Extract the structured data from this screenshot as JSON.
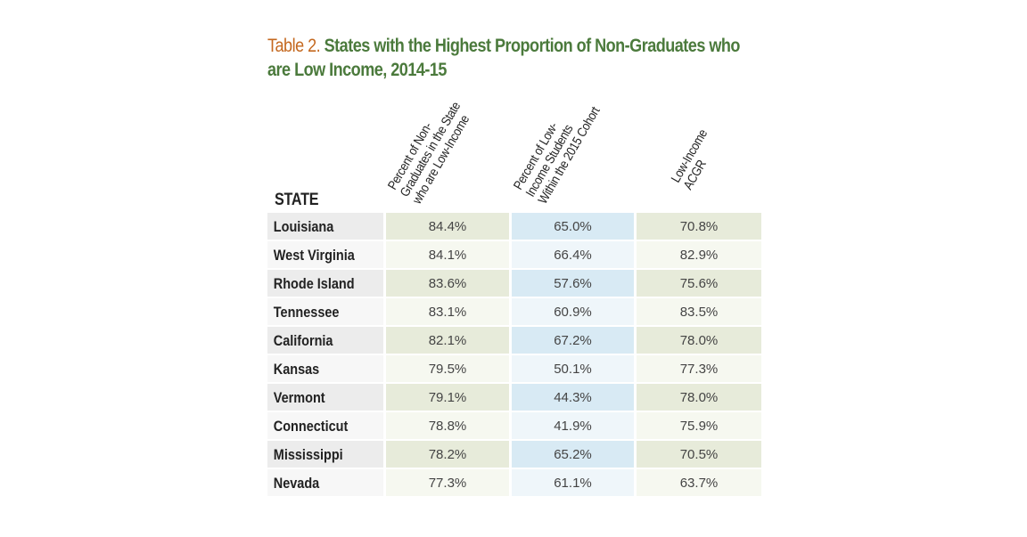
{
  "title": {
    "label": "Table 2.",
    "text": "States with the Highest Proportion of Non-Graduates who are Low Income, 2014-15",
    "label_color": "#c4681f",
    "text_color": "#4b7a3c"
  },
  "columns": {
    "state": "STATE",
    "col1": [
      "Percent of Non-",
      "Graduates in the State",
      "who are Low-Income"
    ],
    "col2": [
      "Percent of Low-",
      "Income Students",
      "Within the 2015 Cohort"
    ],
    "col3": [
      "Low-Income",
      "ACGR"
    ]
  },
  "colors": {
    "odd": [
      "#ececec",
      "#e7ebda",
      "#d8eaf4",
      "#e7ebda"
    ],
    "even": [
      "#f7f7f7",
      "#f6f8f0",
      "#eff6fa",
      "#f6f8f0"
    ]
  },
  "rows": [
    {
      "state": "Louisiana",
      "non_grad_low_income": "84.4%",
      "low_income_cohort": "65.0%",
      "low_income_acgr": "70.8%"
    },
    {
      "state": "West Virginia",
      "non_grad_low_income": "84.1%",
      "low_income_cohort": "66.4%",
      "low_income_acgr": "82.9%"
    },
    {
      "state": "Rhode Island",
      "non_grad_low_income": "83.6%",
      "low_income_cohort": "57.6%",
      "low_income_acgr": "75.6%"
    },
    {
      "state": "Tennessee",
      "non_grad_low_income": "83.1%",
      "low_income_cohort": "60.9%",
      "low_income_acgr": "83.5%"
    },
    {
      "state": "California",
      "non_grad_low_income": "82.1%",
      "low_income_cohort": "67.2%",
      "low_income_acgr": "78.0%"
    },
    {
      "state": "Kansas",
      "non_grad_low_income": "79.5%",
      "low_income_cohort": "50.1%",
      "low_income_acgr": "77.3%"
    },
    {
      "state": "Vermont",
      "non_grad_low_income": "79.1%",
      "low_income_cohort": "44.3%",
      "low_income_acgr": "78.0%"
    },
    {
      "state": "Connecticut",
      "non_grad_low_income": "78.8%",
      "low_income_cohort": "41.9%",
      "low_income_acgr": "75.9%"
    },
    {
      "state": "Mississippi",
      "non_grad_low_income": "78.2%",
      "low_income_cohort": "65.2%",
      "low_income_acgr": "70.5%"
    },
    {
      "state": "Nevada",
      "non_grad_low_income": "77.3%",
      "low_income_cohort": "61.1%",
      "low_income_acgr": "63.7%"
    }
  ]
}
